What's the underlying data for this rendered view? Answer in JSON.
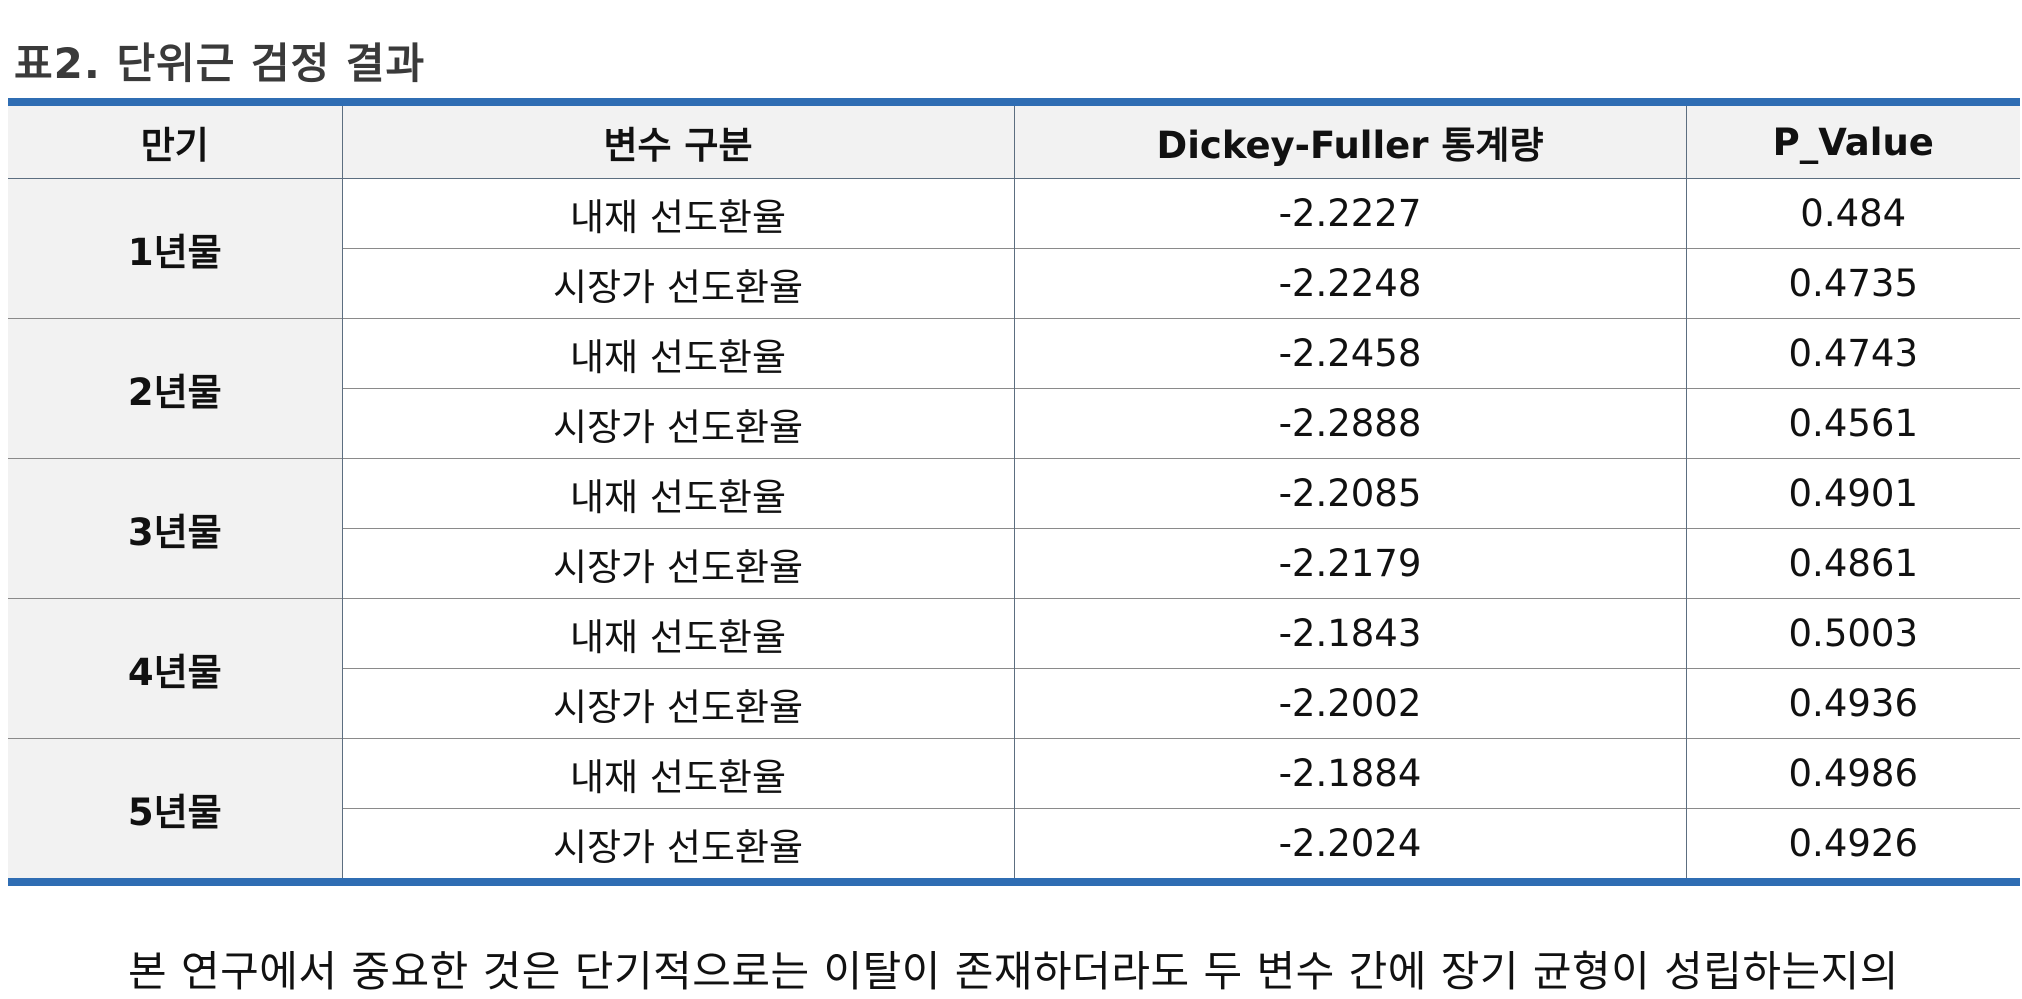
{
  "caption": "표2. 단위근 검정 결과",
  "table": {
    "headers": [
      "만기",
      "변수 구분",
      "Dickey-Fuller 통계량",
      "P_Value"
    ],
    "groups": [
      {
        "maturity": "1년물",
        "rows": [
          {
            "variable": "내재 선도환율",
            "df_stat": "-2.2227",
            "p_value": "0.484"
          },
          {
            "variable": "시장가 선도환율",
            "df_stat": "-2.2248",
            "p_value": "0.4735"
          }
        ]
      },
      {
        "maturity": "2년물",
        "rows": [
          {
            "variable": "내재 선도환율",
            "df_stat": "-2.2458",
            "p_value": "0.4743"
          },
          {
            "variable": "시장가 선도환율",
            "df_stat": "-2.2888",
            "p_value": "0.4561"
          }
        ]
      },
      {
        "maturity": "3년물",
        "rows": [
          {
            "variable": "내재 선도환율",
            "df_stat": "-2.2085",
            "p_value": "0.4901"
          },
          {
            "variable": "시장가 선도환율",
            "df_stat": "-2.2179",
            "p_value": "0.4861"
          }
        ]
      },
      {
        "maturity": "4년물",
        "rows": [
          {
            "variable": "내재 선도환율",
            "df_stat": "-2.1843",
            "p_value": "0.5003"
          },
          {
            "variable": "시장가 선도환율",
            "df_stat": "-2.2002",
            "p_value": "0.4936"
          }
        ]
      },
      {
        "maturity": "5년물",
        "rows": [
          {
            "variable": "내재 선도환율",
            "df_stat": "-2.1884",
            "p_value": "0.4986"
          },
          {
            "variable": "시장가 선도환율",
            "df_stat": "-2.2024",
            "p_value": "0.4926"
          }
        ]
      }
    ]
  },
  "paragraph": "본 연구에서 중요한 것은 단기적으로는 이탈이 존재하더라도 두 변수 간에 장기 균형이 성립하는지의",
  "colors": {
    "accent_rule": "#2f6db3",
    "header_fill": "#f2f2f2"
  }
}
